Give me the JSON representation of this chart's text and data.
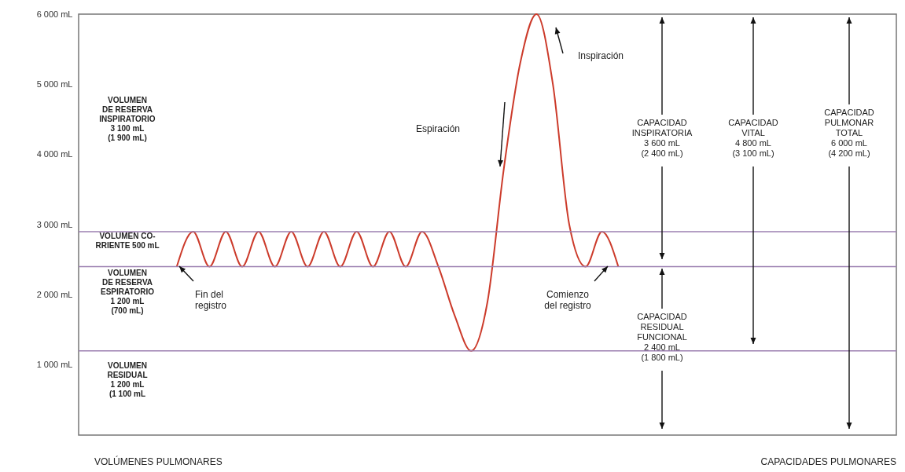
{
  "chart_data": {
    "type": "line",
    "categories": [
      null,
      null,
      null,
      null,
      null,
      null,
      null,
      null,
      null,
      null,
      null,
      null,
      null,
      null,
      null,
      null,
      null,
      null,
      null,
      null,
      null,
      null,
      null,
      null,
      null,
      null,
      null,
      null,
      null,
      null,
      null,
      null,
      null,
      null,
      null,
      null,
      null,
      null,
      null,
      null,
      null,
      null,
      null,
      null,
      null,
      null,
      null,
      null,
      null,
      null,
      null
    ],
    "series": [
      {
        "color": "#cc3b2b",
        "values": [
          null,
          null,
          null,
          null,
          null,
          null,
          2400,
          2900,
          2400,
          2900,
          2400,
          2900,
          2400,
          2900,
          2400,
          2900,
          2400,
          2900,
          2400,
          2900,
          2400,
          2900,
          2400,
          1700,
          1200,
          1900,
          3800,
          5300,
          6000,
          5000,
          3000,
          2400,
          2900,
          2400,
          null,
          null,
          null,
          null,
          null,
          null,
          null,
          null,
          null,
          null,
          null,
          null,
          null,
          null,
          null,
          null,
          null
        ]
      }
    ],
    "ylim": [
      0,
      6000
    ],
    "yticks": [
      {
        "value": 1000,
        "label": "1 000 mL"
      },
      {
        "value": 2000,
        "label": "2 000 mL"
      },
      {
        "value": 3000,
        "label": "3 000 mL"
      },
      {
        "value": 4000,
        "label": "4 000 mL"
      },
      {
        "value": 5000,
        "label": "5 000 mL"
      },
      {
        "value": 6000,
        "label": "6 000 mL"
      }
    ],
    "tick_labels": "y",
    "ref_lines": [
      {
        "axis": "y",
        "value": 2900,
        "color": "#9b7fb0"
      },
      {
        "axis": "y",
        "value": 2400,
        "color": "#9b7fb0"
      },
      {
        "axis": "y",
        "value": 1200,
        "color": "#9b7fb0"
      }
    ],
    "annotations": [
      "VOLUMEN\nDE RESERVA\nINSPIRATORIO\n3 100 mL\n(1 900 mL)",
      "VOLUMEN CO-\nRRIENTE 500 mL",
      "VOLUMEN\nDE RESERVA\nESPIRATORIO\n1 200 mL\n(700 mL)",
      "VOLUMEN\nRESIDUAL\n1 200 mL\n(1 100 mL",
      "Fin del\nregistro",
      "Comienzo\ndel registro",
      "Espiración",
      "Inspiración",
      "CAPACIDAD\nINSPIRATORIA\n3 600 mL\n(2 400 mL)",
      "CAPACIDAD\nVITAL\n4 800 mL\n(3 100 mL)",
      "CAPACIDAD\nPULMONAR\nTOTAL\n6 000 mL\n(4 200 mL)",
      "CAPACIDAD\nRESIDUAL\nFUNCIONAL\n2 400 mL\n(1 800 mL)",
      "VOLÚMENES PULMONARES",
      "CAPACIDADES PULMONARES"
    ]
  }
}
